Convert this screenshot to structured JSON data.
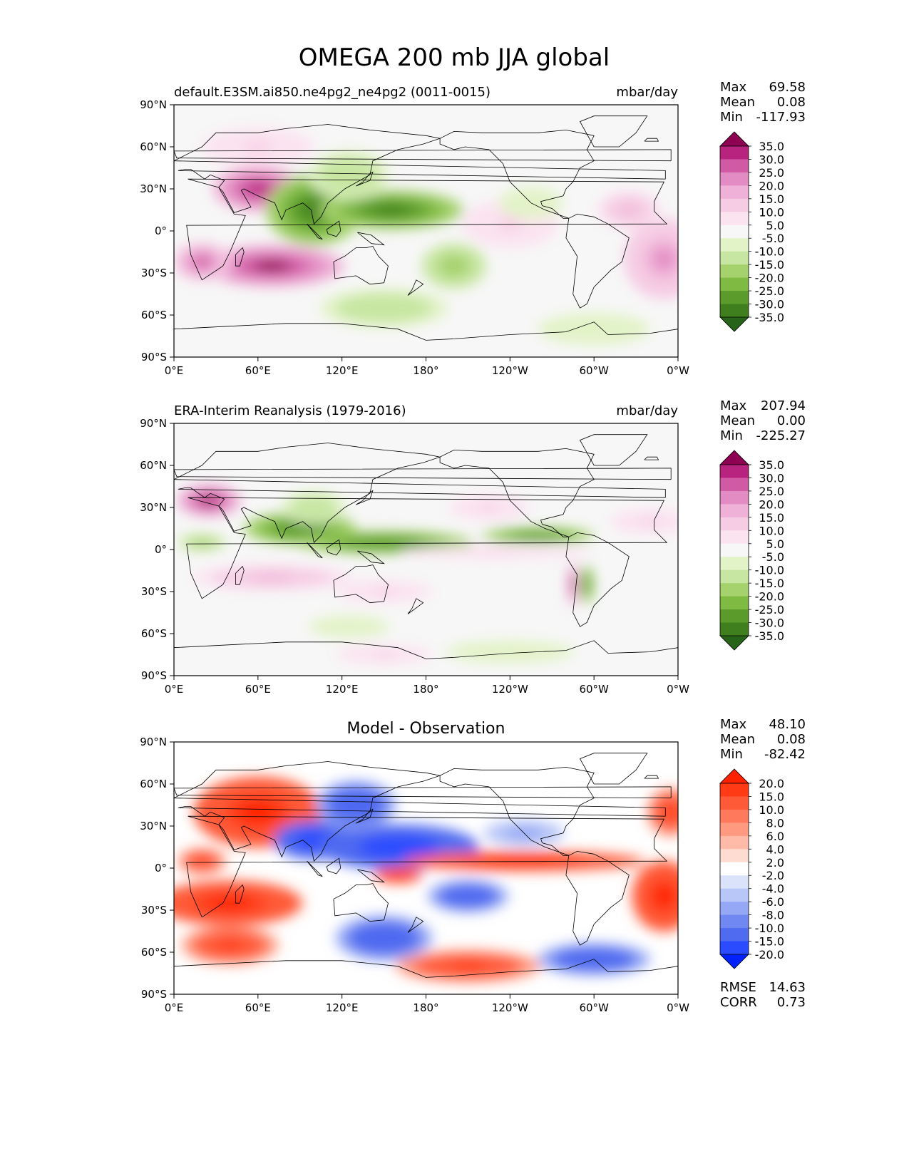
{
  "figure": {
    "title": "OMEGA 200 mb JJA global"
  },
  "colors": {
    "piyg": [
      "#276419",
      "#3f7f1d",
      "#5a9b2b",
      "#7fba43",
      "#a5d26d",
      "#c7e6a1",
      "#e2f3c8",
      "#f7f7f7",
      "#fbe3f0",
      "#f6cce4",
      "#efb1d7",
      "#e38cc3",
      "#d15aa4",
      "#b8237f",
      "#8e0152"
    ],
    "bwr": [
      "#0022ff",
      "#2a4bff",
      "#4f6bf0",
      "#7089f2",
      "#95a8f5",
      "#b8c6f8",
      "#dbe3fb",
      "#ffffff",
      "#ffdcd2",
      "#ffbba8",
      "#ff9980",
      "#ff7a5c",
      "#ff5a38",
      "#ff3a14",
      "#ff2200"
    ],
    "ocean": "#f7f7f7",
    "coast": "#000000"
  },
  "chart_data": [
    {
      "type": "heatmap",
      "title_left": "default.E3SM.ai850.ne4pg2_ne4pg2 (0011-0015)",
      "title_center": "",
      "title_right": "mbar/day",
      "stats": [
        [
          "Max",
          "69.58"
        ],
        [
          "Mean",
          "0.08"
        ],
        [
          "Min",
          "-117.93"
        ]
      ],
      "colorbar_labels": [
        "35.0",
        "30.0",
        "25.0",
        "20.0",
        "15.0",
        "10.0",
        "5.0",
        "-5.0",
        "-10.0",
        "-15.0",
        "-20.0",
        "-25.0",
        "-30.0",
        "-35.0"
      ],
      "palette": "piyg",
      "x_ticks": [
        "0°E",
        "60°E",
        "120°E",
        "180°",
        "120°W",
        "60°W",
        "0°W"
      ],
      "y_ticks": [
        "90°N",
        "60°N",
        "30°N",
        "0°",
        "30°S",
        "60°S",
        "90°S"
      ],
      "xlim": [
        0,
        360
      ],
      "ylim": [
        -90,
        90
      ],
      "features": [
        {
          "lon": 60,
          "lat": 30,
          "rx": 28,
          "ry": 14,
          "v": 30
        },
        {
          "lon": 70,
          "lat": -25,
          "rx": 45,
          "ry": 13,
          "v": 35
        },
        {
          "lon": 20,
          "lat": -22,
          "rx": 18,
          "ry": 12,
          "v": 25
        },
        {
          "lon": 100,
          "lat": 15,
          "rx": 30,
          "ry": 22,
          "v": -35
        },
        {
          "lon": 155,
          "lat": 15,
          "rx": 45,
          "ry": 12,
          "v": -35
        },
        {
          "lon": 125,
          "lat": 40,
          "rx": 25,
          "ry": 15,
          "v": -15
        },
        {
          "lon": 200,
          "lat": -25,
          "rx": 20,
          "ry": 14,
          "v": -20
        },
        {
          "lon": 150,
          "lat": -55,
          "rx": 40,
          "ry": 12,
          "v": -15
        },
        {
          "lon": 350,
          "lat": -20,
          "rx": 25,
          "ry": 25,
          "v": 20
        },
        {
          "lon": 325,
          "lat": 15,
          "rx": 20,
          "ry": 12,
          "v": 15
        },
        {
          "lon": 240,
          "lat": 5,
          "rx": 30,
          "ry": 15,
          "v": 10
        },
        {
          "lon": 255,
          "lat": 20,
          "rx": 20,
          "ry": 10,
          "v": -10
        },
        {
          "lon": 300,
          "lat": -70,
          "rx": 35,
          "ry": 10,
          "v": -10
        },
        {
          "lon": 60,
          "lat": 60,
          "rx": 35,
          "ry": 12,
          "v": 10
        }
      ]
    },
    {
      "type": "heatmap",
      "title_left": "ERA-Interim Reanalysis (1979-2016)",
      "title_center": "",
      "title_right": "mbar/day",
      "stats": [
        [
          "Max",
          "207.94"
        ],
        [
          "Mean",
          "0.00"
        ],
        [
          "Min",
          "-225.27"
        ]
      ],
      "colorbar_labels": [
        "35.0",
        "30.0",
        "25.0",
        "20.0",
        "15.0",
        "10.0",
        "5.0",
        "-5.0",
        "-10.0",
        "-15.0",
        "-20.0",
        "-25.0",
        "-30.0",
        "-35.0"
      ],
      "palette": "piyg",
      "x_ticks": [
        "0°E",
        "60°E",
        "120°E",
        "180°",
        "120°W",
        "60°W",
        "0°W"
      ],
      "y_ticks": [
        "90°N",
        "60°N",
        "30°N",
        "0°",
        "30°S",
        "60°S",
        "90°S"
      ],
      "xlim": [
        0,
        360
      ],
      "ylim": [
        -90,
        90
      ],
      "features": [
        {
          "lon": 25,
          "lat": 35,
          "rx": 20,
          "ry": 10,
          "v": 35
        },
        {
          "lon": 90,
          "lat": 15,
          "rx": 35,
          "ry": 10,
          "v": -30
        },
        {
          "lon": 150,
          "lat": 5,
          "rx": 55,
          "ry": 7,
          "v": -30
        },
        {
          "lon": 260,
          "lat": 10,
          "rx": 35,
          "ry": 5,
          "v": -30
        },
        {
          "lon": 20,
          "lat": 5,
          "rx": 15,
          "ry": 5,
          "v": -20
        },
        {
          "lon": 100,
          "lat": 30,
          "rx": 20,
          "ry": 10,
          "v": -15
        },
        {
          "lon": 70,
          "lat": -20,
          "rx": 50,
          "ry": 8,
          "v": 15
        },
        {
          "lon": 230,
          "lat": -2,
          "rx": 60,
          "ry": 4,
          "v": 10
        },
        {
          "lon": 295,
          "lat": -25,
          "rx": 4,
          "ry": 12,
          "v": -30
        },
        {
          "lon": 285,
          "lat": -25,
          "rx": 3,
          "ry": 14,
          "v": 35
        },
        {
          "lon": 150,
          "lat": -30,
          "rx": 30,
          "ry": 7,
          "v": 10
        },
        {
          "lon": 125,
          "lat": -55,
          "rx": 25,
          "ry": 7,
          "v": -10
        },
        {
          "lon": 150,
          "lat": -75,
          "rx": 30,
          "ry": 6,
          "v": 10
        },
        {
          "lon": 240,
          "lat": -73,
          "rx": 40,
          "ry": 7,
          "v": -10
        },
        {
          "lon": 225,
          "lat": 30,
          "rx": 25,
          "ry": 8,
          "v": 10
        },
        {
          "lon": 340,
          "lat": 20,
          "rx": 25,
          "ry": 8,
          "v": 10
        }
      ]
    },
    {
      "type": "heatmap",
      "title_left": "",
      "title_center": "Model - Observation",
      "title_right": "",
      "stats": [
        [
          "Max",
          "48.10"
        ],
        [
          "Mean",
          "0.08"
        ],
        [
          "Min",
          "-82.42"
        ]
      ],
      "stats_bottom": [
        [
          "RMSE",
          "14.63"
        ],
        [
          "CORR",
          "0.73"
        ]
      ],
      "colorbar_labels": [
        "20.0",
        "15.0",
        "10.0",
        "8.0",
        "6.0",
        "4.0",
        "2.0",
        "-2.0",
        "-4.0",
        "-6.0",
        "-8.0",
        "-10.0",
        "-15.0",
        "-20.0"
      ],
      "palette": "bwr",
      "x_ticks": [
        "0°E",
        "60°E",
        "120°E",
        "180°",
        "120°W",
        "60°W",
        "0°W"
      ],
      "y_ticks": [
        "90°N",
        "60°N",
        "30°N",
        "0°",
        "30°S",
        "60°S",
        "90°S"
      ],
      "xlim": [
        0,
        360
      ],
      "ylim": [
        -90,
        90
      ],
      "features": [
        {
          "lon": 60,
          "lat": 40,
          "rx": 40,
          "ry": 22,
          "v": 20
        },
        {
          "lon": 40,
          "lat": -25,
          "rx": 45,
          "ry": 14,
          "v": 20
        },
        {
          "lon": 40,
          "lat": -55,
          "rx": 30,
          "ry": 12,
          "v": 15
        },
        {
          "lon": 20,
          "lat": 5,
          "rx": 15,
          "ry": 8,
          "v": 15
        },
        {
          "lon": 100,
          "lat": 20,
          "rx": 25,
          "ry": 12,
          "v": -20
        },
        {
          "lon": 160,
          "lat": 15,
          "rx": 50,
          "ry": 14,
          "v": -20
        },
        {
          "lon": 130,
          "lat": 45,
          "rx": 25,
          "ry": 15,
          "v": -15
        },
        {
          "lon": 250,
          "lat": 5,
          "rx": 75,
          "ry": 6,
          "v": 20
        },
        {
          "lon": 210,
          "lat": -70,
          "rx": 45,
          "ry": 10,
          "v": 15
        },
        {
          "lon": 210,
          "lat": -20,
          "rx": 25,
          "ry": 10,
          "v": -15
        },
        {
          "lon": 150,
          "lat": -50,
          "rx": 30,
          "ry": 14,
          "v": -15
        },
        {
          "lon": 300,
          "lat": -65,
          "rx": 35,
          "ry": 10,
          "v": -15
        },
        {
          "lon": 350,
          "lat": -20,
          "rx": 20,
          "ry": 22,
          "v": 20
        },
        {
          "lon": 355,
          "lat": 40,
          "rx": 15,
          "ry": 15,
          "v": 15
        },
        {
          "lon": 160,
          "lat": -5,
          "rx": 15,
          "ry": 5,
          "v": 20
        },
        {
          "lon": 250,
          "lat": 25,
          "rx": 25,
          "ry": 8,
          "v": -8
        }
      ]
    }
  ]
}
